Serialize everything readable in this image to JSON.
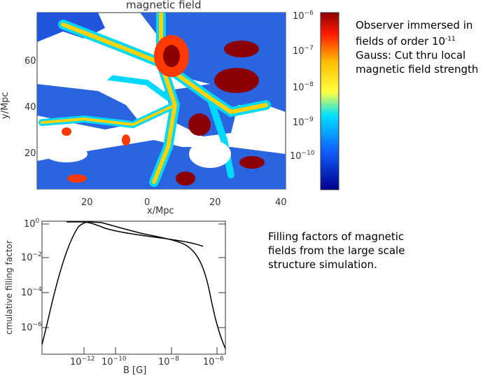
{
  "map": {
    "title": "magnetic field",
    "ylabel": "y/Mpc",
    "xlabel": "x/Mpc",
    "yticks": [
      "60",
      "40",
      "20"
    ],
    "xticks": [
      "20",
      "0",
      "20",
      "40"
    ],
    "colorbar_ticks": [
      {
        "base": "10",
        "exp": "−6"
      },
      {
        "base": "10",
        "exp": "−7"
      },
      {
        "base": "10",
        "exp": "−8"
      },
      {
        "base": "10",
        "exp": "−9"
      },
      {
        "base": "10",
        "exp": "−10"
      }
    ]
  },
  "caption_top": {
    "line1": "Observer immersed in",
    "line2_pre": "fields of order 10",
    "line2_sup": "-11",
    "line3": "Gauss: Cut thru local",
    "line4": "magnetic field strength"
  },
  "filling_plot": {
    "ylabel": "cmulative filling factor",
    "xlabel": "B [G]",
    "yticks": [
      {
        "base": "10",
        "exp": "0"
      },
      {
        "base": "10",
        "exp": "−2"
      },
      {
        "base": "10",
        "exp": "−4"
      },
      {
        "base": "10",
        "exp": "−6"
      }
    ],
    "xticks": [
      {
        "base": "10",
        "exp": "−12"
      },
      {
        "base": "10",
        "exp": "−10"
      },
      {
        "base": "10",
        "exp": "−8"
      },
      {
        "base": "10",
        "exp": "−6"
      }
    ]
  },
  "caption_bottom": {
    "line1": "Filling factors of magnetic",
    "line2": "fields from the large scale",
    "line3": "structure simulation."
  },
  "colors": {
    "colorbar_top": "#8b0000",
    "colorbar_mid": "#00d0ff",
    "colorbar_bottom": "#00008b",
    "frame": "#333333"
  }
}
